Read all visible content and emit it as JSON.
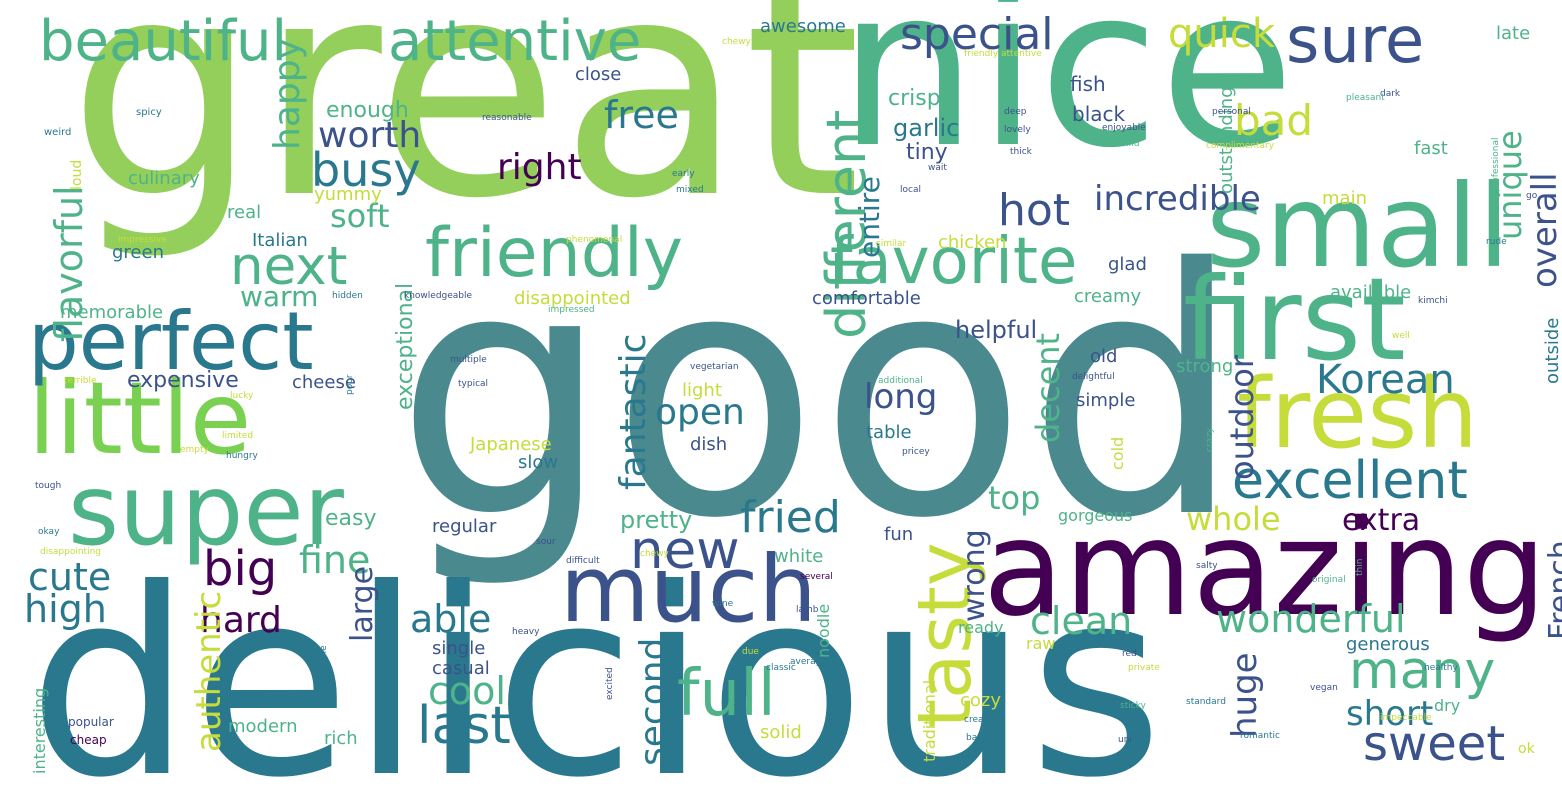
{
  "palette": {
    "purple": "#440154",
    "indigo": "#3b528b",
    "teal": "#2a788e",
    "slate": "#4a8a8f",
    "green": "#22a884",
    "seafoam": "#4fb38a",
    "lime": "#7ad151",
    "grass": "#93cf5a",
    "yellow": "#c5dc3b"
  },
  "words": [
    {
      "text": "great",
      "c": "grass"
    },
    {
      "text": "good",
      "c": "slate"
    },
    {
      "text": "delicious",
      "c": "teal"
    },
    {
      "text": "nice",
      "c": "seafoam"
    },
    {
      "text": "amazing",
      "c": "purple"
    },
    {
      "text": "small",
      "c": "seafoam"
    },
    {
      "text": "first",
      "c": "seafoam"
    },
    {
      "text": "fresh",
      "c": "yellow"
    },
    {
      "text": "little",
      "c": "lime"
    },
    {
      "text": "super",
      "c": "seafoam"
    },
    {
      "text": "perfect",
      "c": "teal"
    },
    {
      "text": "much",
      "c": "indigo"
    },
    {
      "text": "friendly",
      "c": "seafoam"
    },
    {
      "text": "favorite",
      "c": "seafoam"
    },
    {
      "text": "beautiful",
      "c": "seafoam"
    },
    {
      "text": "attentive",
      "c": "seafoam"
    },
    {
      "text": "sure",
      "c": "indigo"
    },
    {
      "text": "next",
      "c": "seafoam"
    },
    {
      "text": "tasty",
      "c": "yellow"
    },
    {
      "text": "different",
      "c": "seafoam"
    },
    {
      "text": "excellent",
      "c": "teal"
    },
    {
      "text": "special",
      "c": "indigo"
    },
    {
      "text": "full",
      "c": "seafoam"
    },
    {
      "text": "sweet",
      "c": "indigo"
    },
    {
      "text": "new",
      "c": "indigo"
    },
    {
      "text": "last",
      "c": "teal"
    },
    {
      "text": "many",
      "c": "seafoam"
    },
    {
      "text": "fried",
      "c": "teal"
    },
    {
      "text": "hot",
      "c": "indigo"
    },
    {
      "text": "busy",
      "c": "teal"
    },
    {
      "text": "big",
      "c": "purple"
    },
    {
      "text": "quick",
      "c": "yellow"
    },
    {
      "text": "bad",
      "c": "yellow"
    },
    {
      "text": "incredible",
      "c": "indigo"
    },
    {
      "text": "Korean",
      "c": "teal"
    },
    {
      "text": "worth",
      "c": "indigo"
    },
    {
      "text": "wonderful",
      "c": "seafoam"
    },
    {
      "text": "cute",
      "c": "teal"
    },
    {
      "text": "flavorful",
      "c": "seafoam"
    },
    {
      "text": "happy",
      "c": "seafoam"
    },
    {
      "text": "overall",
      "c": "indigo"
    },
    {
      "text": "unique",
      "c": "seafoam"
    },
    {
      "text": "fantastic",
      "c": "teal"
    },
    {
      "text": "clean",
      "c": "seafoam"
    },
    {
      "text": "cool",
      "c": "seafoam"
    },
    {
      "text": "short",
      "c": "teal"
    },
    {
      "text": "free",
      "c": "teal"
    },
    {
      "text": "open",
      "c": "teal"
    },
    {
      "text": "long",
      "c": "indigo"
    },
    {
      "text": "right",
      "c": "purple"
    },
    {
      "text": "soft",
      "c": "seafoam"
    },
    {
      "text": "entire",
      "c": "teal"
    },
    {
      "text": "fine",
      "c": "seafoam"
    },
    {
      "text": "high",
      "c": "teal"
    },
    {
      "text": "able",
      "c": "teal"
    },
    {
      "text": "hard",
      "c": "purple"
    },
    {
      "text": "warm",
      "c": "seafoam"
    },
    {
      "text": "top",
      "c": "seafoam"
    },
    {
      "text": "whole",
      "c": "yellow"
    },
    {
      "text": "extra",
      "c": "purple"
    },
    {
      "text": "second",
      "c": "teal"
    },
    {
      "text": "authentic",
      "c": "yellow"
    },
    {
      "text": "large",
      "c": "indigo"
    },
    {
      "text": "huge",
      "c": "indigo"
    },
    {
      "text": "outdoor",
      "c": "indigo"
    },
    {
      "text": "decent",
      "c": "seafoam"
    },
    {
      "text": "wrong",
      "c": "indigo"
    },
    {
      "text": "French",
      "c": "indigo"
    },
    {
      "text": "pretty",
      "c": "seafoam"
    },
    {
      "text": "expensive",
      "c": "indigo"
    },
    {
      "text": "easy",
      "c": "seafoam"
    },
    {
      "text": "exceptional",
      "c": "seafoam"
    },
    {
      "text": "helpful",
      "c": "indigo"
    },
    {
      "text": "enough",
      "c": "seafoam"
    },
    {
      "text": "crispy",
      "c": "seafoam"
    },
    {
      "text": "garlic",
      "c": "teal"
    },
    {
      "text": "tiny",
      "c": "indigo"
    },
    {
      "text": "black",
      "c": "indigo"
    },
    {
      "text": "fish",
      "c": "indigo"
    },
    {
      "text": "awesome",
      "c": "teal"
    },
    {
      "text": "close",
      "c": "indigo"
    },
    {
      "text": "culinary",
      "c": "seafoam"
    },
    {
      "text": "yummy",
      "c": "yellow"
    },
    {
      "text": "real",
      "c": "seafoam"
    },
    {
      "text": "Italian",
      "c": "teal"
    },
    {
      "text": "green",
      "c": "teal"
    },
    {
      "text": "chicken",
      "c": "yellow"
    },
    {
      "text": "disappointed",
      "c": "yellow"
    },
    {
      "text": "comfortable",
      "c": "indigo"
    },
    {
      "text": "creamy",
      "c": "seafoam"
    },
    {
      "text": "glad",
      "c": "indigo"
    },
    {
      "text": "available",
      "c": "seafoam"
    },
    {
      "text": "outside",
      "c": "teal"
    },
    {
      "text": "outstanding",
      "c": "seafoam"
    },
    {
      "text": "main",
      "c": "yellow"
    },
    {
      "text": "fast",
      "c": "seafoam"
    },
    {
      "text": "late",
      "c": "seafoam"
    },
    {
      "text": "memorable",
      "c": "seafoam"
    },
    {
      "text": "cheese",
      "c": "indigo"
    },
    {
      "text": "light",
      "c": "yellow"
    },
    {
      "text": "dish",
      "c": "indigo"
    },
    {
      "text": "Japanese",
      "c": "yellow"
    },
    {
      "text": "slow",
      "c": "teal"
    },
    {
      "text": "table",
      "c": "teal"
    },
    {
      "text": "old",
      "c": "indigo"
    },
    {
      "text": "simple",
      "c": "indigo"
    },
    {
      "text": "strong",
      "c": "seafoam"
    },
    {
      "text": "cold",
      "c": "yellow"
    },
    {
      "text": "noodle",
      "c": "seafoam"
    },
    {
      "text": "regular",
      "c": "indigo"
    },
    {
      "text": "gorgeous",
      "c": "seafoam"
    },
    {
      "text": "fun",
      "c": "indigo"
    },
    {
      "text": "white",
      "c": "seafoam"
    },
    {
      "text": "ready",
      "c": "seafoam"
    },
    {
      "text": "raw",
      "c": "yellow"
    },
    {
      "text": "single",
      "c": "indigo"
    },
    {
      "text": "casual",
      "c": "indigo"
    },
    {
      "text": "modern",
      "c": "seafoam"
    },
    {
      "text": "rich",
      "c": "seafoam"
    },
    {
      "text": "solid",
      "c": "yellow"
    },
    {
      "text": "cozy",
      "c": "yellow"
    },
    {
      "text": "traditional",
      "c": "yellow"
    },
    {
      "text": "generous",
      "c": "teal"
    },
    {
      "text": "dry",
      "c": "seafoam"
    },
    {
      "text": "interesting",
      "c": "seafoam"
    },
    {
      "text": "popular",
      "c": "indigo"
    },
    {
      "text": "cheap",
      "c": "purple"
    },
    {
      "text": "ok",
      "c": "yellow"
    },
    {
      "text": "loud",
      "c": "yellow"
    },
    {
      "text": "spicy",
      "c": "teal"
    },
    {
      "text": "weird",
      "c": "teal"
    },
    {
      "text": "chewy",
      "c": "yellow"
    },
    {
      "text": "friendly attentive",
      "c": "yellow"
    },
    {
      "text": "reasonable",
      "c": "indigo"
    },
    {
      "text": "deep",
      "c": "indigo"
    },
    {
      "text": "lovely",
      "c": "indigo"
    },
    {
      "text": "enjoyable",
      "c": "indigo"
    },
    {
      "text": "mild",
      "c": "seafoam"
    },
    {
      "text": "personal",
      "c": "indigo"
    },
    {
      "text": "dark",
      "c": "indigo"
    },
    {
      "text": "pleasant",
      "c": "seafoam"
    },
    {
      "text": "complimentary",
      "c": "yellow"
    },
    {
      "text": "thick",
      "c": "indigo"
    },
    {
      "text": "wait",
      "c": "indigo"
    },
    {
      "text": "local",
      "c": "indigo"
    },
    {
      "text": "early",
      "c": "teal"
    },
    {
      "text": "mixed",
      "c": "teal"
    },
    {
      "text": "professional",
      "c": "seafoam"
    },
    {
      "text": "go",
      "c": "indigo"
    },
    {
      "text": "impressive",
      "c": "yellow"
    },
    {
      "text": "phenomenal",
      "c": "yellow"
    },
    {
      "text": "similar",
      "c": "yellow"
    },
    {
      "text": "rude",
      "c": "teal"
    },
    {
      "text": "hidden",
      "c": "teal"
    },
    {
      "text": "knowledgeable",
      "c": "indigo"
    },
    {
      "text": "impressed",
      "c": "seafoam"
    },
    {
      "text": "kimchi",
      "c": "indigo"
    },
    {
      "text": "well",
      "c": "yellow"
    },
    {
      "text": "multiple",
      "c": "indigo"
    },
    {
      "text": "vegetarian",
      "c": "indigo"
    },
    {
      "text": "typical",
      "c": "indigo"
    },
    {
      "text": "additional",
      "c": "seafoam"
    },
    {
      "text": "delightful",
      "c": "indigo"
    },
    {
      "text": "terrible",
      "c": "yellow"
    },
    {
      "text": "lucky",
      "c": "yellow"
    },
    {
      "text": "poor",
      "c": "teal"
    },
    {
      "text": "limited",
      "c": "yellow"
    },
    {
      "text": "empty",
      "c": "yellow"
    },
    {
      "text": "hungry",
      "c": "teal"
    },
    {
      "text": "pricey",
      "c": "indigo"
    },
    {
      "text": "crazy",
      "c": "seafoam"
    },
    {
      "text": "tough",
      "c": "indigo"
    },
    {
      "text": "okay",
      "c": "teal"
    },
    {
      "text": "disappointing",
      "c": "yellow"
    },
    {
      "text": "sour",
      "c": "indigo"
    },
    {
      "text": "difficult",
      "c": "indigo"
    },
    {
      "text": "several",
      "c": "purple"
    },
    {
      "text": "salty",
      "c": "indigo"
    },
    {
      "text": "original",
      "c": "seafoam"
    },
    {
      "text": "thin",
      "c": "seafoam"
    },
    {
      "text": "chewy",
      "c": "yellow"
    },
    {
      "text": "wine",
      "c": "teal"
    },
    {
      "text": "lamb",
      "c": "indigo"
    },
    {
      "text": "heavy",
      "c": "indigo"
    },
    {
      "text": "horrible",
      "c": "teal"
    },
    {
      "text": "due",
      "c": "yellow"
    },
    {
      "text": "average",
      "c": "teal"
    },
    {
      "text": "classic",
      "c": "teal"
    },
    {
      "text": "excited",
      "c": "indigo"
    },
    {
      "text": "red",
      "c": "indigo"
    },
    {
      "text": "private",
      "c": "yellow"
    },
    {
      "text": "healthy",
      "c": "teal"
    },
    {
      "text": "vegan",
      "c": "indigo"
    },
    {
      "text": "standard",
      "c": "teal"
    },
    {
      "text": "impeccable",
      "c": "yellow"
    },
    {
      "text": "creative",
      "c": "teal"
    },
    {
      "text": "basic",
      "c": "teal"
    },
    {
      "text": "sticky",
      "c": "seafoam"
    },
    {
      "text": "uni",
      "c": "indigo"
    },
    {
      "text": "romantic",
      "c": "teal"
    }
  ]
}
